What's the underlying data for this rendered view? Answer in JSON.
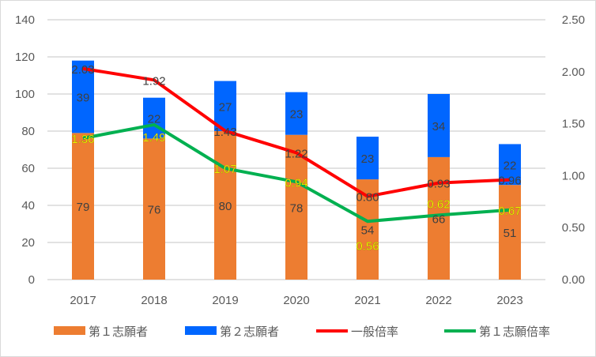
{
  "chart_data": {
    "type": "bar",
    "categories": [
      "2017",
      "2018",
      "2019",
      "2020",
      "2021",
      "2022",
      "2023"
    ],
    "series": [
      {
        "name": "第１志願者",
        "kind": "stacked-bar",
        "axis": "left",
        "color": "#ED7D31",
        "values": [
          79,
          76,
          80,
          78,
          54,
          66,
          51
        ]
      },
      {
        "name": "第２志願者",
        "kind": "stacked-bar",
        "axis": "left",
        "color": "#0066FF",
        "values": [
          39,
          22,
          27,
          23,
          23,
          34,
          22
        ]
      },
      {
        "name": "一般倍率",
        "kind": "line",
        "axis": "right",
        "color": "#FF0000",
        "label_color": "#404040",
        "values": [
          2.03,
          1.92,
          1.43,
          1.22,
          0.8,
          0.93,
          0.96
        ]
      },
      {
        "name": "第１志願倍率",
        "kind": "line",
        "axis": "right",
        "color": "#00B050",
        "label_color": "#FFFF00",
        "values": [
          1.36,
          1.49,
          1.07,
          0.94,
          0.56,
          0.62,
          0.67
        ]
      }
    ],
    "left_axis": {
      "ylim": [
        0,
        140
      ],
      "ticks": [
        "0",
        "20",
        "40",
        "60",
        "80",
        "100",
        "120",
        "140"
      ]
    },
    "right_axis": {
      "ylim": [
        0,
        2.5
      ],
      "ticks": [
        "0.00",
        "0.50",
        "1.00",
        "1.50",
        "2.00",
        "2.50"
      ]
    },
    "grid": true,
    "legend": "bottom"
  }
}
